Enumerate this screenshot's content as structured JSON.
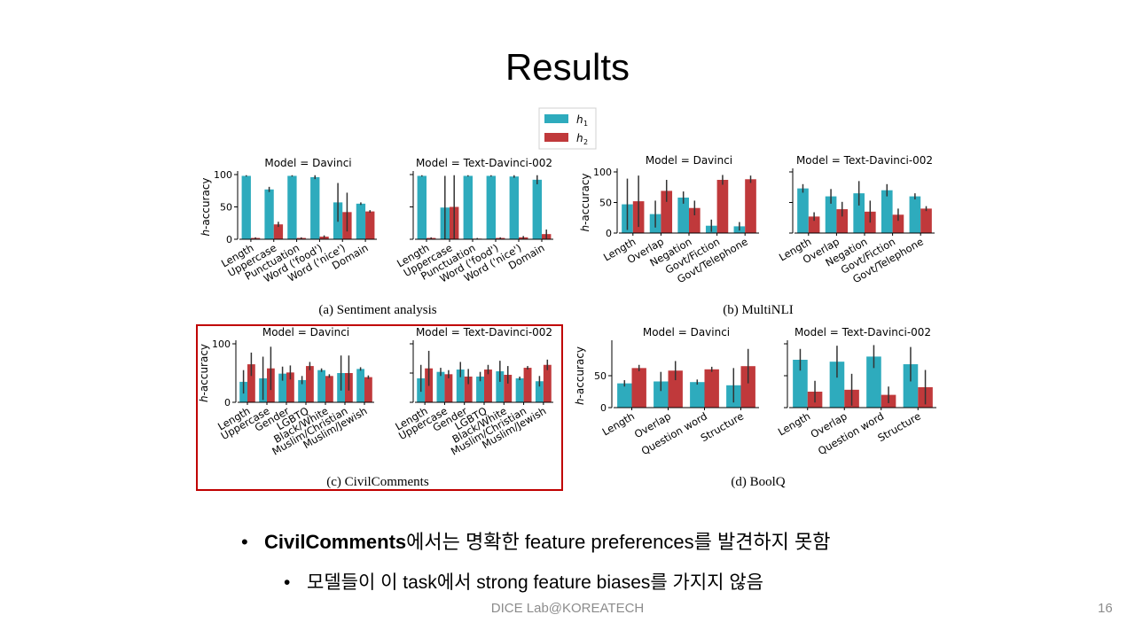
{
  "slide": {
    "title": "Results",
    "bullet1_bold": "CivilComments",
    "bullet1_rest": "에서는 명확한 feature preferences를 발견하지 못함",
    "bullet2": "모델들이 이 task에서 strong feature biases를 가지지 않음",
    "footer": "DICE Lab@KOREATECH",
    "page_number": "16"
  },
  "legend": {
    "h1": "h",
    "h1_sub": "1",
    "h2": "h",
    "h2_sub": "2"
  },
  "colors": {
    "h1": "#2eabbd",
    "h2": "#c0393b",
    "axis": "#000000",
    "error": "#333333"
  },
  "chart_data": [
    {
      "type": "bar",
      "id": "sent-davinci",
      "title": "Model = Davinci",
      "ylabel": "h-accuracy",
      "ylim": [
        0,
        100
      ],
      "yticks": [
        0,
        50,
        100
      ],
      "categories": [
        "Length",
        "Uppercase",
        "Punctuation",
        "Word ('food')",
        "Word ('nice')",
        "Domain"
      ],
      "series": [
        {
          "name": "h1",
          "values": [
            98,
            77,
            98,
            96,
            57,
            55
          ],
          "err": [
            1,
            4,
            1,
            3,
            30,
            2
          ]
        },
        {
          "name": "h2",
          "values": [
            2,
            23,
            2,
            4,
            42,
            43
          ],
          "err": [
            1,
            4,
            1,
            2,
            30,
            2
          ]
        }
      ]
    },
    {
      "type": "bar",
      "id": "sent-td002",
      "title": "Model = Text-Davinci-002",
      "ylabel": "",
      "ylim": [
        0,
        100
      ],
      "yticks": [],
      "categories": [
        "Length",
        "Uppercase",
        "Punctuation",
        "Word ('food')",
        "Word ('nice')",
        "Domain"
      ],
      "series": [
        {
          "name": "h1",
          "values": [
            98,
            49,
            98,
            98,
            97,
            92
          ],
          "err": [
            1,
            49,
            1,
            1,
            2,
            7
          ]
        },
        {
          "name": "h2",
          "values": [
            2,
            50,
            1,
            2,
            3,
            8
          ],
          "err": [
            1,
            49,
            1,
            1,
            2,
            7
          ]
        }
      ]
    },
    {
      "type": "bar",
      "id": "mnli-davinci",
      "title": "Model = Davinci",
      "ylabel": "h-accuracy",
      "ylim": [
        0,
        100
      ],
      "yticks": [
        0,
        50,
        100
      ],
      "categories": [
        "Length",
        "Overlap",
        "Negation",
        "Govt/Fiction",
        "Govt/Telephone"
      ],
      "series": [
        {
          "name": "h1",
          "values": [
            47,
            31,
            58,
            12,
            11
          ],
          "err": [
            42,
            22,
            10,
            10,
            7
          ]
        },
        {
          "name": "h2",
          "values": [
            52,
            69,
            41,
            87,
            88
          ],
          "err": [
            42,
            18,
            12,
            8,
            6
          ]
        }
      ]
    },
    {
      "type": "bar",
      "id": "mnli-td002",
      "title": "Model = Text-Davinci-002",
      "ylabel": "",
      "ylim": [
        0,
        100
      ],
      "yticks": [],
      "categories": [
        "Length",
        "Overlap",
        "Negation",
        "Govt/Fiction",
        "Govt/Telephone"
      ],
      "series": [
        {
          "name": "h1",
          "values": [
            73,
            60,
            65,
            70,
            60
          ],
          "err": [
            7,
            12,
            20,
            10,
            5
          ]
        },
        {
          "name": "h2",
          "values": [
            27,
            39,
            35,
            30,
            40
          ],
          "err": [
            7,
            12,
            18,
            10,
            4
          ]
        }
      ]
    },
    {
      "type": "bar",
      "id": "civil-davinci",
      "title": "Model = Davinci",
      "ylabel": "h-accuracy",
      "ylim": [
        0,
        100
      ],
      "yticks": [
        0,
        100
      ],
      "categories": [
        "Length",
        "Uppercase",
        "Gender",
        "LGBTQ",
        "Black/White",
        "Muslim/Christian",
        "Muslim/Jewish"
      ],
      "series": [
        {
          "name": "h1",
          "values": [
            35,
            41,
            49,
            38,
            55,
            50,
            57
          ],
          "err": [
            20,
            37,
            12,
            7,
            3,
            30,
            3
          ]
        },
        {
          "name": "h2",
          "values": [
            65,
            58,
            51,
            62,
            45,
            50,
            43
          ],
          "err": [
            20,
            37,
            12,
            7,
            3,
            30,
            3
          ]
        }
      ]
    },
    {
      "type": "bar",
      "id": "civil-td002",
      "title": "Model = Text-Davinci-002",
      "ylabel": "",
      "ylim": [
        0,
        100
      ],
      "yticks": [],
      "categories": [
        "Length",
        "Uppercase",
        "Gender",
        "LGBTQ",
        "Black/White",
        "Muslim/Christian",
        "Muslim/Jewish"
      ],
      "series": [
        {
          "name": "h1",
          "values": [
            41,
            52,
            56,
            44,
            53,
            41,
            36
          ],
          "err": [
            23,
            7,
            13,
            8,
            18,
            3,
            9
          ]
        },
        {
          "name": "h2",
          "values": [
            58,
            48,
            44,
            56,
            47,
            59,
            64
          ],
          "err": [
            30,
            7,
            13,
            8,
            15,
            3,
            9
          ]
        }
      ]
    },
    {
      "type": "bar",
      "id": "boolq-davinci",
      "title": "Model = Davinci",
      "ylabel": "h-accuracy",
      "ylim": [
        0,
        100
      ],
      "yticks": [
        0,
        50
      ],
      "categories": [
        "Length",
        "Overlap",
        "Question word",
        "Structure"
      ],
      "series": [
        {
          "name": "h1",
          "values": [
            38,
            41,
            40,
            35
          ],
          "err": [
            5,
            15,
            4,
            27
          ]
        },
        {
          "name": "h2",
          "values": [
            62,
            58,
            60,
            65
          ],
          "err": [
            5,
            15,
            4,
            27
          ]
        }
      ]
    },
    {
      "type": "bar",
      "id": "boolq-td002",
      "title": "Model = Text-Davinci-002",
      "ylabel": "",
      "ylim": [
        0,
        100
      ],
      "yticks": [],
      "categories": [
        "Length",
        "Overlap",
        "Question word",
        "Structure"
      ],
      "series": [
        {
          "name": "h1",
          "values": [
            75,
            72,
            80,
            68
          ],
          "err": [
            17,
            25,
            18,
            27
          ]
        },
        {
          "name": "h2",
          "values": [
            25,
            28,
            20,
            32
          ],
          "err": [
            17,
            25,
            13,
            27
          ]
        }
      ]
    }
  ],
  "captions": [
    "(a) Sentiment analysis",
    "(b) MultiNLI",
    "(c) CivilComments",
    "(d) BoolQ"
  ]
}
